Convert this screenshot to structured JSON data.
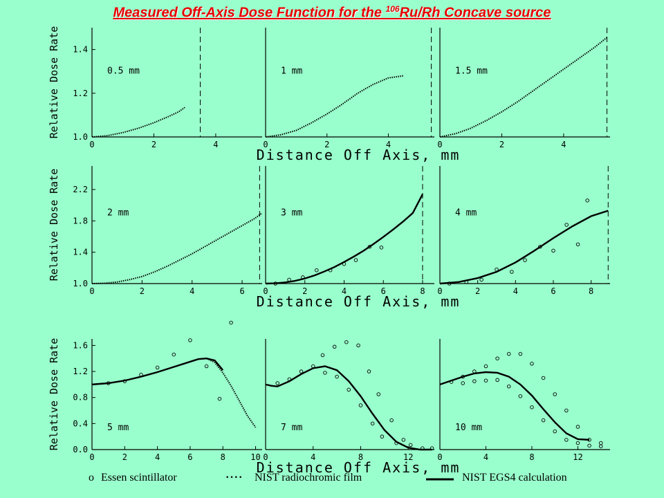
{
  "title": {
    "main": "Measured Off-Axis Dose Function for the ",
    "sup": "106",
    "rest": "Ru/Rh Concave source"
  },
  "colors": {
    "background": "#99ffcc",
    "title": "#e60000",
    "curve": "#000000"
  },
  "legend": {
    "essen_marker": "o",
    "essen": "Essen scintillator",
    "film_marker": "····",
    "film": "NIST radiochromic film",
    "egs4": "NIST EGS4 calculation"
  },
  "chart_data": [
    {
      "type": "line",
      "row": 0,
      "col": 0,
      "panel_label": "0.5 mm",
      "xlim": [
        0,
        5.5
      ],
      "ylim": [
        1.0,
        1.5
      ],
      "xticks": [
        0,
        2,
        4
      ],
      "yticks": [
        1.0,
        1.2,
        1.4
      ],
      "ylabel": "Relative Dose Rate",
      "xlabel": "Distance Off Axis, mm",
      "dashed_x": 3.5,
      "film": {
        "x": [
          0,
          0.5,
          1,
          1.5,
          2,
          2.5,
          2.8,
          3.0
        ],
        "y": [
          1.0,
          1.006,
          1.02,
          1.04,
          1.065,
          1.095,
          1.115,
          1.135
        ]
      }
    },
    {
      "type": "line",
      "row": 0,
      "col": 1,
      "panel_label": "1 mm",
      "xlim": [
        0,
        5.5
      ],
      "ylim": [
        1.0,
        1.5
      ],
      "xticks": [
        0,
        2,
        4
      ],
      "yticks": [],
      "dashed_x": 5.4,
      "film": {
        "x": [
          0,
          0.5,
          1,
          1.5,
          2,
          2.5,
          3,
          3.5,
          4,
          4.5
        ],
        "y": [
          1.0,
          1.01,
          1.03,
          1.065,
          1.105,
          1.15,
          1.2,
          1.24,
          1.27,
          1.28
        ]
      }
    },
    {
      "type": "line",
      "row": 0,
      "col": 2,
      "panel_label": "1.5 mm",
      "xlim": [
        0,
        5.5
      ],
      "ylim": [
        1.0,
        1.5
      ],
      "xticks": [
        0,
        2,
        4
      ],
      "yticks": [],
      "dashed_x": 5.4,
      "film": {
        "x": [
          0,
          0.5,
          1,
          1.5,
          2,
          2.5,
          3,
          3.5,
          4,
          4.5,
          5,
          5.4
        ],
        "y": [
          1.0,
          1.015,
          1.04,
          1.075,
          1.115,
          1.16,
          1.21,
          1.26,
          1.31,
          1.36,
          1.41,
          1.455
        ]
      }
    },
    {
      "type": "line",
      "row": 1,
      "col": 0,
      "panel_label": "2 mm",
      "xlim": [
        0,
        6.8
      ],
      "ylim": [
        1.0,
        2.5
      ],
      "xticks": [
        0,
        2,
        4,
        6
      ],
      "yticks": [
        1.0,
        1.4,
        1.8,
        2.2
      ],
      "ylabel": "Relative Dose Rate",
      "xlabel": "Distance Off Axis, mm",
      "dashed_x": 6.7,
      "film": {
        "x": [
          0,
          0.5,
          1,
          1.5,
          2,
          2.5,
          3,
          3.5,
          4,
          4.5,
          5,
          5.5,
          6,
          6.5,
          6.8
        ],
        "y": [
          1.0,
          1.005,
          1.02,
          1.05,
          1.09,
          1.15,
          1.22,
          1.3,
          1.38,
          1.47,
          1.56,
          1.65,
          1.74,
          1.83,
          1.9
        ]
      }
    },
    {
      "type": "line",
      "row": 1,
      "col": 1,
      "panel_label": "3 mm",
      "xlim": [
        0,
        8.6
      ],
      "ylim": [
        1.0,
        2.5
      ],
      "xticks": [
        0,
        2,
        4,
        6,
        8
      ],
      "yticks": [],
      "dashed_x": 8.0,
      "film": {
        "x": [
          0,
          0.5,
          1,
          1.5,
          2,
          2.5,
          3,
          3.5,
          4,
          4.5,
          5,
          5.5,
          6,
          6.5,
          7,
          7.5,
          8
        ],
        "y": [
          1.0,
          1.004,
          1.015,
          1.035,
          1.065,
          1.105,
          1.155,
          1.21,
          1.275,
          1.345,
          1.42,
          1.505,
          1.595,
          1.69,
          1.79,
          1.9,
          2.14
        ]
      },
      "egs4": {
        "x": [
          0,
          0.5,
          1,
          1.5,
          2,
          2.5,
          3,
          3.5,
          4,
          4.5,
          5,
          5.5,
          6,
          6.5,
          7,
          7.5,
          8
        ],
        "y": [
          1.0,
          1.004,
          1.015,
          1.035,
          1.065,
          1.105,
          1.155,
          1.21,
          1.275,
          1.345,
          1.42,
          1.505,
          1.595,
          1.69,
          1.79,
          1.9,
          2.14
        ]
      },
      "essen": {
        "x": [
          0.5,
          1.2,
          1.9,
          2.6,
          3.3,
          4.0,
          4.6,
          5.3,
          5.9
        ],
        "y": [
          1.0,
          1.05,
          1.08,
          1.17,
          1.17,
          1.25,
          1.3,
          1.47,
          1.46
        ]
      }
    },
    {
      "type": "line",
      "row": 1,
      "col": 2,
      "panel_label": "4 mm",
      "xlim": [
        0,
        9.0
      ],
      "ylim": [
        1.0,
        2.5
      ],
      "xticks": [
        0,
        2,
        4,
        6,
        8
      ],
      "yticks": [],
      "dashed_x": 8.9,
      "film": {
        "x": [
          0,
          1,
          2,
          3,
          4,
          5,
          6,
          7,
          8,
          8.9
        ],
        "y": [
          1.0,
          1.02,
          1.07,
          1.15,
          1.27,
          1.42,
          1.58,
          1.73,
          1.86,
          1.93
        ]
      },
      "egs4": {
        "x": [
          0,
          1,
          2,
          3,
          4,
          5,
          6,
          7,
          8,
          8.9
        ],
        "y": [
          1.0,
          1.02,
          1.07,
          1.15,
          1.27,
          1.42,
          1.58,
          1.73,
          1.86,
          1.93
        ]
      },
      "essen": {
        "x": [
          0.5,
          1.4,
          2.2,
          3.0,
          3.8,
          4.5,
          5.3,
          6.0,
          6.7,
          7.3,
          7.8
        ],
        "y": [
          1.0,
          1.02,
          1.05,
          1.18,
          1.15,
          1.3,
          1.47,
          1.42,
          1.75,
          1.5,
          2.06
        ]
      }
    },
    {
      "type": "line",
      "row": 2,
      "col": 0,
      "panel_label": "5 mm",
      "xlim": [
        0,
        10.4
      ],
      "ylim": [
        0.0,
        1.7
      ],
      "xticks": [
        0,
        2,
        4,
        6,
        8,
        10
      ],
      "yticks": [
        0.0,
        0.4,
        0.8,
        1.2,
        1.6
      ],
      "ylabel": "Relative Dose Rate",
      "xlabel": "Distance Off Axis, mm",
      "film": {
        "x": [
          0,
          1,
          2,
          3,
          4,
          5,
          6,
          6.5,
          7,
          7.5,
          8,
          8.5,
          9,
          9.5,
          10
        ],
        "y": [
          1.0,
          1.02,
          1.06,
          1.12,
          1.19,
          1.27,
          1.35,
          1.39,
          1.4,
          1.34,
          1.18,
          0.98,
          0.75,
          0.52,
          0.34
        ]
      },
      "egs4": {
        "x": [
          0,
          1,
          2,
          3,
          4,
          5,
          6,
          6.5,
          7,
          7.5,
          8
        ],
        "y": [
          1.0,
          1.02,
          1.06,
          1.12,
          1.19,
          1.27,
          1.35,
          1.39,
          1.4,
          1.37,
          1.22
        ]
      },
      "essen": {
        "x": [
          1.0,
          2.0,
          3.0,
          4.0,
          5.0,
          6.0,
          7.0,
          7.8,
          8.5
        ],
        "y": [
          1.02,
          1.05,
          1.15,
          1.26,
          1.46,
          1.68,
          1.28,
          0.78,
          1.95
        ]
      }
    },
    {
      "type": "line",
      "row": 2,
      "col": 1,
      "panel_label": "7 mm",
      "xlim": [
        0,
        14.2
      ],
      "ylim": [
        0.0,
        1.7
      ],
      "xticks": [
        0,
        4,
        8,
        12
      ],
      "yticks": [],
      "film": {
        "x": [
          0,
          0.5,
          1,
          2,
          3,
          4,
          5,
          6,
          7,
          8,
          9,
          10,
          11,
          12,
          13,
          14
        ],
        "y": [
          1.0,
          0.98,
          0.97,
          1.05,
          1.16,
          1.25,
          1.28,
          1.22,
          1.05,
          0.82,
          0.55,
          0.3,
          0.12,
          0.03,
          0.0,
          0.0
        ]
      },
      "egs4": {
        "x": [
          0,
          0.5,
          1,
          2,
          3,
          4,
          5,
          6,
          7,
          8,
          9,
          10,
          11,
          12,
          13,
          14
        ],
        "y": [
          1.0,
          0.98,
          0.97,
          1.05,
          1.16,
          1.25,
          1.28,
          1.22,
          1.05,
          0.82,
          0.55,
          0.3,
          0.12,
          0.03,
          0.0,
          0.0
        ]
      },
      "essen": {
        "x": [
          1.0,
          2.0,
          3.0,
          4.0,
          5.0,
          6.0,
          7.0,
          8.0,
          9.0,
          9.8,
          11.0,
          12.2,
          13.2,
          14.0,
          4.8,
          5.8,
          6.8,
          7.8,
          8.7,
          9.5,
          10.6,
          11.6
        ],
        "y": [
          1.02,
          1.08,
          1.2,
          1.28,
          1.18,
          1.12,
          0.92,
          0.68,
          0.4,
          0.2,
          0.1,
          0.07,
          0.02,
          0.02,
          1.45,
          1.58,
          1.65,
          1.6,
          1.2,
          0.85,
          0.45,
          0.15
        ]
      }
    },
    {
      "type": "line",
      "row": 2,
      "col": 2,
      "panel_label": "10 mm",
      "xlim": [
        0,
        14.8
      ],
      "ylim": [
        0.0,
        1.7
      ],
      "xticks": [
        0,
        4,
        8,
        12
      ],
      "yticks": [],
      "film": {
        "x": [
          0,
          1,
          2,
          3,
          4,
          5,
          6,
          7,
          8,
          9,
          10,
          11,
          12,
          13
        ],
        "y": [
          1.0,
          1.06,
          1.12,
          1.17,
          1.19,
          1.18,
          1.12,
          1.0,
          0.83,
          0.62,
          0.42,
          0.25,
          0.16,
          0.15
        ]
      },
      "egs4": {
        "x": [
          0,
          1,
          2,
          3,
          4,
          5,
          6,
          7,
          8,
          9,
          10,
          11,
          12,
          13
        ],
        "y": [
          1.0,
          1.06,
          1.12,
          1.17,
          1.19,
          1.18,
          1.12,
          1.0,
          0.83,
          0.62,
          0.42,
          0.25,
          0.16,
          0.15
        ]
      },
      "essen": {
        "x": [
          1.0,
          2.0,
          3.0,
          4.0,
          5.0,
          6.0,
          7.0,
          8.0,
          9.0,
          10.0,
          11.0,
          12.0,
          13.0,
          14.0,
          2.0,
          3.0,
          4.0,
          5.0,
          6.0,
          7.0,
          8.0,
          9.0,
          10.0,
          11.0,
          12.0,
          13.0,
          14.0
        ],
        "y": [
          1.04,
          1.02,
          1.05,
          1.06,
          1.07,
          0.97,
          0.82,
          0.65,
          0.45,
          0.28,
          0.15,
          0.1,
          0.06,
          0.05,
          1.12,
          1.2,
          1.28,
          1.4,
          1.47,
          1.47,
          1.32,
          1.1,
          0.85,
          0.6,
          0.35,
          0.15,
          0.1
        ]
      }
    }
  ]
}
